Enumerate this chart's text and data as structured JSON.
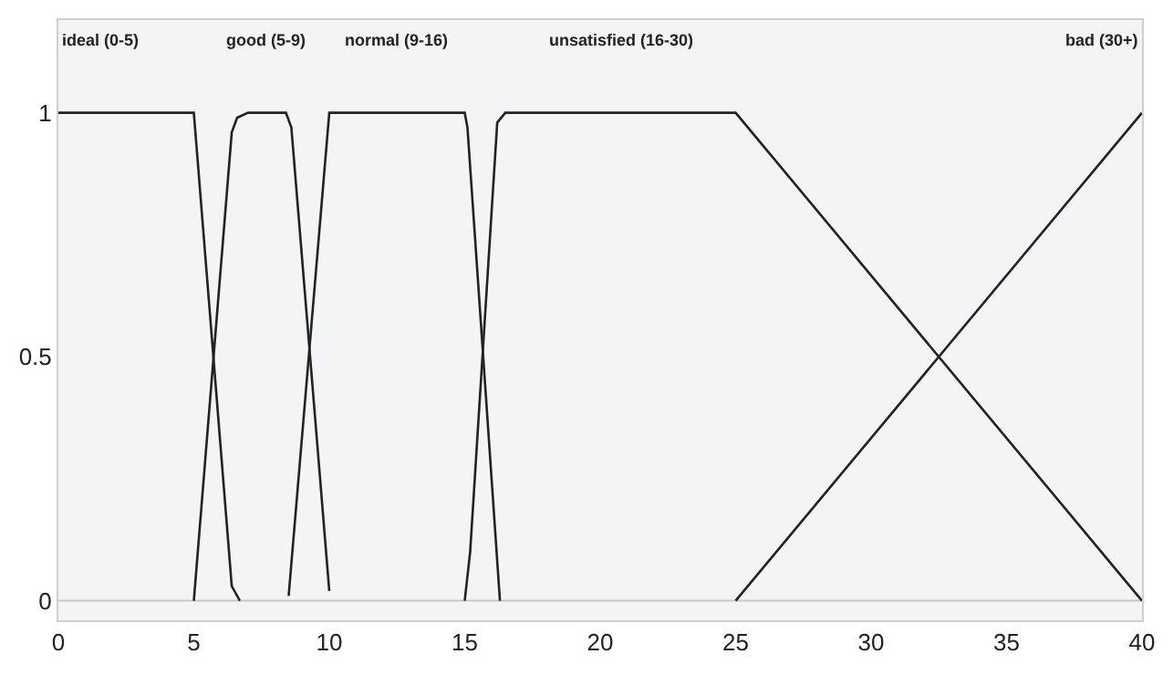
{
  "chart_data": {
    "type": "line",
    "series": [
      {
        "color": "#222222",
        "x": [
          0,
          5,
          6.4,
          6.7
        ],
        "values": [
          1,
          1,
          0.03,
          0
        ]
      },
      {
        "color": "#222222",
        "x": [
          5,
          6.4,
          6.6,
          7,
          8.4,
          8.6,
          10
        ],
        "values": [
          0,
          0.96,
          0.99,
          1,
          1,
          0.97,
          0.02
        ]
      },
      {
        "color": "#222222",
        "x": [
          8.5,
          10,
          15,
          15.1,
          16.3
        ],
        "values": [
          0.01,
          1,
          1,
          0.97,
          0
        ]
      },
      {
        "color": "#222222",
        "x": [
          15,
          15.2,
          16.2,
          16.5,
          25,
          40
        ],
        "values": [
          0,
          0.1,
          0.98,
          1,
          1,
          0
        ]
      },
      {
        "color": "#222222",
        "x": [
          25,
          40
        ],
        "values": [
          0,
          1
        ]
      }
    ],
    "annotations": [
      "ideal (0-5)",
      "good (5-9)",
      "normal (9-16)",
      "unsatisfied (16-30)",
      "bad (30+)"
    ],
    "xlim": [
      0,
      40
    ],
    "xticks": [
      0,
      5,
      10,
      15,
      20,
      25,
      30,
      35,
      40
    ],
    "ylim": [
      -0.04,
      1.19
    ],
    "yticks": [
      0,
      0.5,
      1
    ],
    "ref_lines": [
      {
        "axis": "y",
        "value": 0,
        "color": "#c8c8c8"
      }
    ],
    "grid": false,
    "marker": "none",
    "line_style": "solid"
  }
}
